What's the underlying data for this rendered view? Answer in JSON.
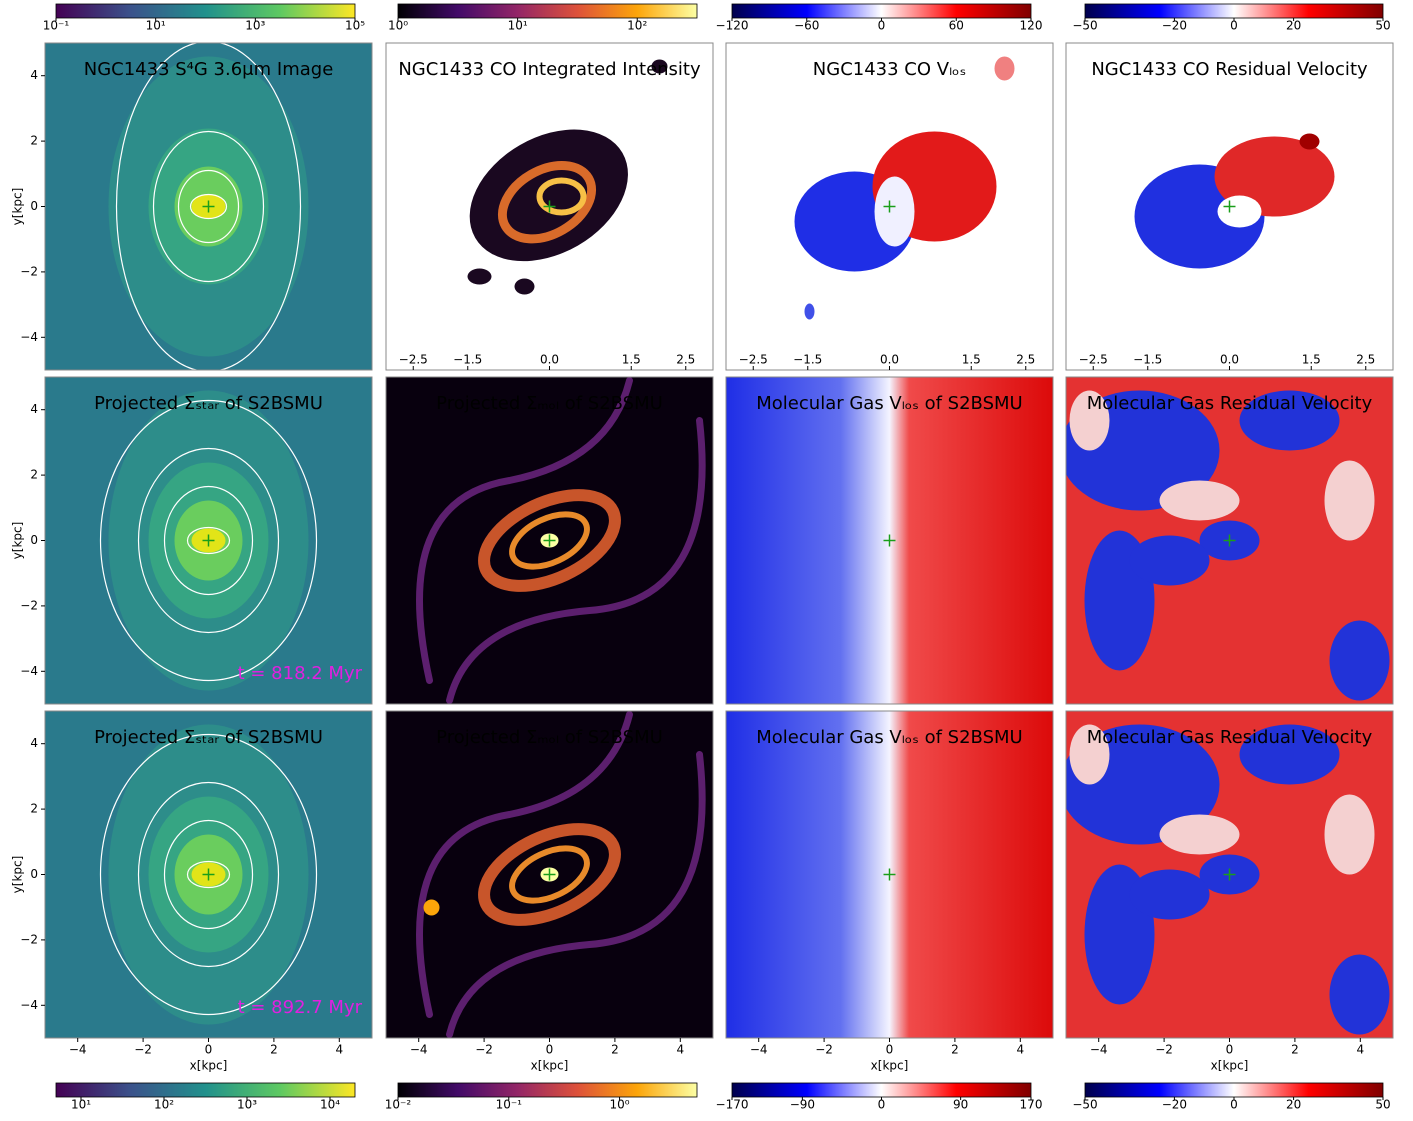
{
  "chart_data": [
    {
      "type": "image",
      "title": "NGC1433 S⁴G  3.6μm Image",
      "xlim": [
        -5,
        5
      ],
      "ylim": [
        -5,
        5
      ],
      "yticks": [
        4,
        2,
        0,
        {
          "value": -2,
          "label": "−2"
        },
        {
          "value": -4,
          "label": "−4"
        }
      ],
      "ylabel": "y[kpc]"
    },
    {
      "type": "image",
      "title": "NGC1433 CO Integrated Intensity",
      "xlim": [
        -3,
        3
      ],
      "ylim": [
        -3,
        3
      ],
      "xticks": [
        {
          "value": -2.5,
          "label": "−2.5"
        },
        {
          "value": -1.5,
          "label": "−1.5"
        },
        {
          "value": 0,
          "label": "0.0"
        },
        1.5,
        2.5
      ]
    },
    {
      "type": "image",
      "title": "NGC1433 CO Vₗₒₛ",
      "xlim": [
        -3,
        3
      ],
      "ylim": [
        -3,
        3
      ],
      "xticks": [
        {
          "value": -2.5,
          "label": "−2.5"
        },
        {
          "value": -1.5,
          "label": "−1.5"
        },
        {
          "value": 0,
          "label": "0.0"
        },
        1.5,
        2.5
      ]
    },
    {
      "type": "image",
      "title": "NGC1433 CO Residual Velocity",
      "xlim": [
        -3,
        3
      ],
      "ylim": [
        -3,
        3
      ],
      "xticks": [
        {
          "value": -2.5,
          "label": "−2.5"
        },
        {
          "value": -1.5,
          "label": "−1.5"
        },
        {
          "value": 0,
          "label": "0.0"
        },
        1.5,
        2.5
      ]
    },
    {
      "type": "image",
      "title": "Projected Σₛₜₐᵣ of S2BSMU",
      "xlim": [
        -5,
        5
      ],
      "ylim": [
        -5,
        5
      ],
      "yticks": [
        4,
        2,
        0,
        {
          "value": -2,
          "label": "−2"
        },
        {
          "value": -4,
          "label": "−4"
        }
      ],
      "ylabel": "y[kpc]",
      "annotation": "t = 818.2 Myr"
    },
    {
      "type": "image",
      "title": "Projected Σₘₒₗ of S2BSMU",
      "xlim": [
        -5,
        5
      ],
      "ylim": [
        -5,
        5
      ]
    },
    {
      "type": "image",
      "title": "Molecular Gas Vₗₒₛ of S2BSMU",
      "xlim": [
        -5,
        5
      ],
      "ylim": [
        -5,
        5
      ]
    },
    {
      "type": "image",
      "title": "Molecular Gas Residual Velocity",
      "xlim": [
        -5,
        5
      ],
      "ylim": [
        -5,
        5
      ]
    },
    {
      "type": "image",
      "title": "Projected Σₛₜₐᵣ of S2BSMU",
      "xlim": [
        -5,
        5
      ],
      "ylim": [
        -5,
        5
      ],
      "yticks": [
        4,
        2,
        0,
        {
          "value": -2,
          "label": "−2"
        },
        {
          "value": -4,
          "label": "−4"
        }
      ],
      "ylabel": "y[kpc]",
      "annotation": "t = 892.7 Myr",
      "xticks": [
        {
          "value": -4,
          "label": "−4"
        },
        {
          "value": -2,
          "label": "−2"
        },
        0,
        2,
        4
      ],
      "xlabel": "x[kpc]"
    },
    {
      "type": "image",
      "title": "Projected Σₘₒₗ of S2BSMU",
      "xlim": [
        -5,
        5
      ],
      "ylim": [
        -5,
        5
      ],
      "xticks": [
        {
          "value": -4,
          "label": "−4"
        },
        {
          "value": -2,
          "label": "−2"
        },
        0,
        2,
        4
      ],
      "xlabel": "x[kpc]"
    },
    {
      "type": "image",
      "title": "Molecular Gas Vₗₒₛ of S2BSMU",
      "xlim": [
        -5,
        5
      ],
      "ylim": [
        -5,
        5
      ],
      "xticks": [
        {
          "value": -4,
          "label": "−4"
        },
        {
          "value": -2,
          "label": "−2"
        },
        0,
        2,
        4
      ],
      "xlabel": "x[kpc]"
    },
    {
      "type": "image",
      "title": "Molecular Gas Residual Velocity",
      "xlim": [
        -5,
        5
      ],
      "ylim": [
        -5,
        5
      ],
      "xticks": [
        {
          "value": -4,
          "label": "−4"
        },
        {
          "value": -2,
          "label": "−2"
        },
        0,
        2,
        4
      ],
      "xlabel": "x[kpc]"
    },
    {
      "type": "colorbar",
      "log": true,
      "lim": [
        0.1,
        100000
      ],
      "ticks": [
        {
          "value": 0.1,
          "label": "10⁻¹"
        },
        {
          "value": 10,
          "label": "10¹"
        },
        {
          "value": 1000,
          "label": "10³"
        },
        {
          "value": 100000,
          "label": "10⁵"
        }
      ],
      "colors": [
        "#440154",
        "#3b528b",
        "#21918c",
        "#5ec962",
        "#fde725"
      ]
    },
    {
      "type": "colorbar",
      "log": true,
      "lim": [
        1,
        316
      ],
      "ticks": [
        {
          "value": 1,
          "label": "10⁰"
        },
        {
          "value": 10,
          "label": "10¹"
        },
        {
          "value": 100,
          "label": "10²"
        }
      ],
      "colors": [
        "#000004",
        "#420a68",
        "#932667",
        "#dd513a",
        "#fca50a",
        "#fcffa4"
      ]
    },
    {
      "type": "colorbar",
      "log": false,
      "lim": [
        -120,
        120
      ],
      "ticks": [
        {
          "value": -120,
          "label": "−120"
        },
        {
          "value": -60,
          "label": "−60"
        },
        0,
        60,
        120
      ],
      "colors": [
        "#00004c",
        "#0000ff",
        "#ffffff",
        "#ff0000",
        "#800000"
      ]
    },
    {
      "type": "colorbar",
      "log": false,
      "lim": [
        -50,
        50
      ],
      "ticks": [
        {
          "value": -50,
          "label": "−50"
        },
        {
          "value": -20,
          "label": "−20"
        },
        0,
        20,
        50
      ],
      "colors": [
        "#00004c",
        "#0000ff",
        "#ffffff",
        "#ff0000",
        "#800000"
      ]
    },
    {
      "type": "colorbar",
      "log": true,
      "lim": [
        5,
        20000
      ],
      "ticks": [
        {
          "value": 10,
          "label": "10¹"
        },
        {
          "value": 100,
          "label": "10²"
        },
        {
          "value": 1000,
          "label": "10³"
        },
        {
          "value": 10000,
          "label": "10⁴"
        }
      ],
      "colors": [
        "#440154",
        "#3b528b",
        "#21918c",
        "#5ec962",
        "#fde725"
      ]
    },
    {
      "type": "colorbar",
      "log": true,
      "lim": [
        0.01,
        5
      ],
      "ticks": [
        {
          "value": 0.01,
          "label": "10⁻²"
        },
        {
          "value": 0.1,
          "label": "10⁻¹"
        },
        {
          "value": 1,
          "label": "10⁰"
        }
      ],
      "colors": [
        "#000004",
        "#420a68",
        "#932667",
        "#dd513a",
        "#fca50a",
        "#fcffa4"
      ]
    },
    {
      "type": "colorbar",
      "log": false,
      "lim": [
        -170,
        170
      ],
      "ticks": [
        {
          "value": -170,
          "label": "−170"
        },
        {
          "value": -90,
          "label": "−90"
        },
        0,
        90,
        170
      ],
      "colors": [
        "#00004c",
        "#0000ff",
        "#ffffff",
        "#ff0000",
        "#800000"
      ]
    },
    {
      "type": "colorbar",
      "log": false,
      "lim": [
        -50,
        50
      ],
      "ticks": [
        {
          "value": -50,
          "label": "−50"
        },
        {
          "value": -20,
          "label": "−20"
        },
        0,
        20,
        50
      ],
      "colors": [
        "#00004c",
        "#0000ff",
        "#ffffff",
        "#ff0000",
        "#800000"
      ]
    }
  ]
}
